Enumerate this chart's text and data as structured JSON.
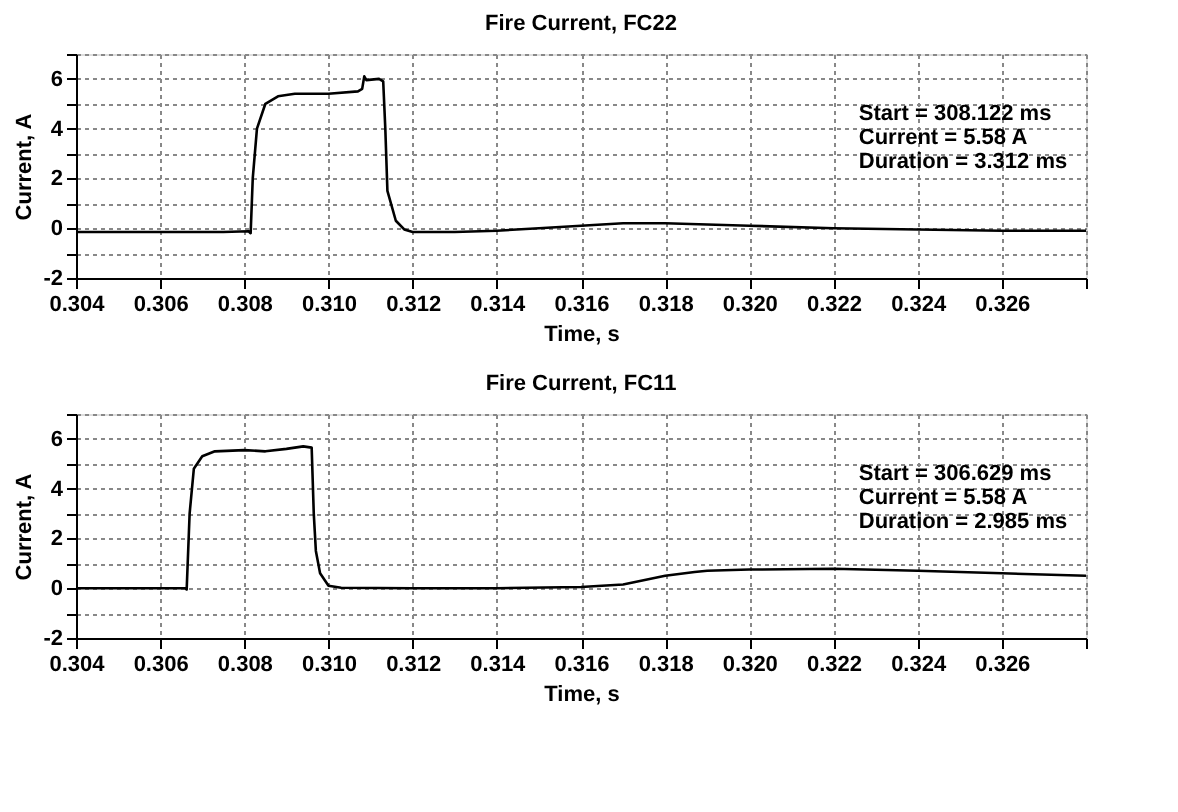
{
  "chart_data": [
    {
      "type": "line",
      "title": "Fire Current, FC22",
      "xlabel": "Time, s",
      "ylabel": "Current, A",
      "x": [
        0.304,
        0.3075,
        0.3081,
        0.30815,
        0.3082,
        0.3083,
        0.3085,
        0.3088,
        0.3092,
        0.31,
        0.3107,
        0.3108,
        0.31085,
        0.3109,
        0.3112,
        0.3113,
        0.31135,
        0.3114,
        0.3116,
        0.3118,
        0.312,
        0.313,
        0.314,
        0.315,
        0.316,
        0.317,
        0.318,
        0.319,
        0.32,
        0.322,
        0.324,
        0.326,
        0.328
      ],
      "series": [
        {
          "color": "#000000",
          "values": [
            -0.15,
            -0.15,
            -0.12,
            -0.2,
            2.0,
            4.0,
            5.0,
            5.3,
            5.4,
            5.4,
            5.5,
            5.6,
            6.1,
            5.95,
            6.0,
            5.9,
            4.0,
            1.5,
            0.3,
            -0.05,
            -0.15,
            -0.15,
            -0.1,
            0.0,
            0.1,
            0.2,
            0.2,
            0.15,
            0.1,
            0.0,
            -0.05,
            -0.1,
            -0.1
          ]
        }
      ],
      "xlim": [
        0.304,
        0.328
      ],
      "ylim": [
        -2,
        7
      ],
      "xticks": [
        0.304,
        0.306,
        0.308,
        {
          "value": 0.31,
          "label": "0.310"
        },
        0.312,
        0.314,
        0.316,
        0.318,
        {
          "value": 0.32,
          "label": "0.320"
        },
        0.322,
        0.324,
        0.326,
        {
          "value": 0.328,
          "label": null
        }
      ],
      "yticks": [
        -2,
        {
          "value": -1,
          "label": null
        },
        0,
        {
          "value": 1,
          "label": null
        },
        2,
        {
          "value": 3,
          "label": null
        },
        4,
        {
          "value": 5,
          "label": null
        },
        6,
        {
          "value": 7,
          "label": null
        }
      ],
      "grid": true,
      "line_style": "solid",
      "marker": "none",
      "annotations": [
        "Start = 308.122 ms",
        "Current = 5.58 A",
        "Duration = 3.312 ms"
      ]
    },
    {
      "type": "line",
      "title": "Fire Current, FC11",
      "xlabel": "Time, s",
      "ylabel": "Current, A",
      "x": [
        0.304,
        0.3066,
        0.30663,
        0.3067,
        0.3068,
        0.307,
        0.3073,
        0.308,
        0.3085,
        0.309,
        0.3094,
        0.3096,
        0.30965,
        0.3097,
        0.3098,
        0.31,
        0.3103,
        0.312,
        0.314,
        0.316,
        0.317,
        0.318,
        0.3187,
        0.319,
        0.32,
        0.322,
        0.324,
        0.326,
        0.328
      ],
      "series": [
        {
          "color": "#000000",
          "values": [
            0,
            0,
            -0.05,
            3.0,
            4.8,
            5.3,
            5.5,
            5.55,
            5.5,
            5.6,
            5.7,
            5.65,
            3.0,
            1.5,
            0.6,
            0.1,
            0.02,
            0,
            0,
            0.05,
            0.15,
            0.5,
            0.65,
            0.7,
            0.75,
            0.78,
            0.7,
            0.6,
            0.5
          ]
        }
      ],
      "xlim": [
        0.304,
        0.328
      ],
      "ylim": [
        -2,
        7
      ],
      "xticks": [
        0.304,
        0.306,
        0.308,
        {
          "value": 0.31,
          "label": "0.310"
        },
        0.312,
        0.314,
        0.316,
        0.318,
        {
          "value": 0.32,
          "label": "0.320"
        },
        0.322,
        0.324,
        0.326,
        {
          "value": 0.328,
          "label": null
        }
      ],
      "yticks": [
        -2,
        {
          "value": -1,
          "label": null
        },
        0,
        {
          "value": 1,
          "label": null
        },
        2,
        {
          "value": 3,
          "label": null
        },
        4,
        {
          "value": 5,
          "label": null
        },
        6,
        {
          "value": 7,
          "label": null
        }
      ],
      "grid": true,
      "line_style": "solid",
      "marker": "none",
      "annotations": [
        "Start = 306.629 ms",
        "Current = 5.58 A",
        "Duration = 2.985 ms"
      ]
    }
  ]
}
